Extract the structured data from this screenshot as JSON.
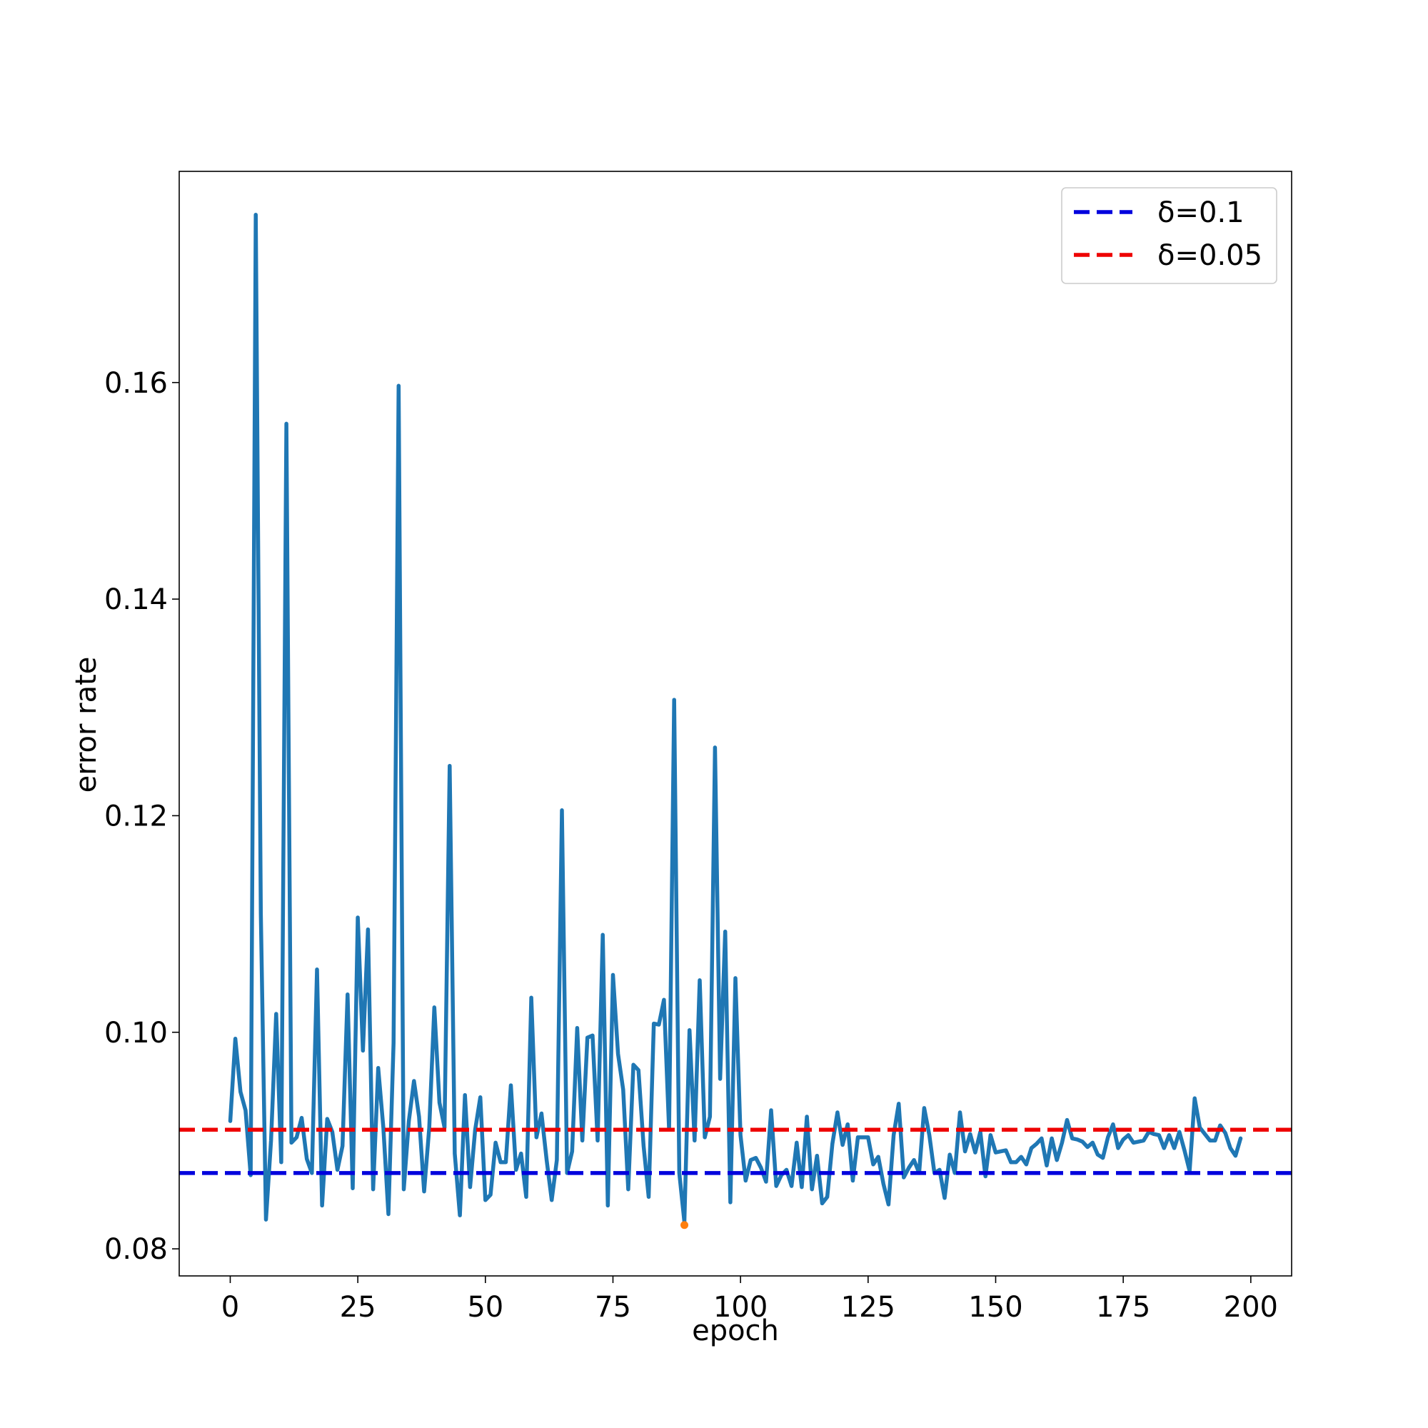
{
  "chart_data": {
    "type": "line",
    "title": "",
    "xlabel": "epoch",
    "ylabel": "error rate",
    "xlim": [
      -10,
      208
    ],
    "ylim": [
      0.0775,
      0.1795
    ],
    "xticks": [
      0,
      25,
      50,
      75,
      100,
      125,
      150,
      175,
      200
    ],
    "xtick_labels": [
      "0",
      "25",
      "50",
      "75",
      "100",
      "125",
      "150",
      "175",
      "200"
    ],
    "yticks": [
      0.08,
      0.1,
      0.12,
      0.14,
      0.16
    ],
    "ytick_labels": [
      "0.08",
      "0.10",
      "0.12",
      "0.14",
      "0.16"
    ],
    "grid": false,
    "legend_position": "top-right",
    "colors": {
      "series": "#1f77b4",
      "delta_01": "#0000dd",
      "delta_005": "#ee0000",
      "marker": "#ff7f0e"
    },
    "series": [
      {
        "color": "#1f77b4",
        "x": [
          0,
          1,
          2,
          3,
          4,
          5,
          6,
          7,
          8,
          9,
          10,
          11,
          12,
          13,
          14,
          15,
          16,
          17,
          18,
          19,
          20,
          21,
          22,
          23,
          24,
          25,
          26,
          27,
          28,
          29,
          30,
          31,
          32,
          33,
          34,
          35,
          36,
          37,
          38,
          39,
          40,
          41,
          42,
          43,
          44,
          45,
          46,
          47,
          48,
          49,
          50,
          51,
          52,
          53,
          54,
          55,
          56,
          57,
          58,
          59,
          60,
          61,
          62,
          63,
          64,
          65,
          66,
          67,
          68,
          69,
          70,
          71,
          72,
          73,
          74,
          75,
          76,
          77,
          78,
          79,
          80,
          81,
          82,
          83,
          84,
          85,
          86,
          87,
          88,
          89,
          90,
          91,
          92,
          93,
          94,
          95,
          96,
          97,
          98,
          99,
          100,
          101,
          102,
          103,
          104,
          105,
          106,
          107,
          108,
          109,
          110,
          111,
          112,
          113,
          114,
          115,
          116,
          117,
          118,
          119,
          120,
          121,
          122,
          123,
          124,
          125,
          126,
          127,
          128,
          129,
          130,
          131,
          132,
          133,
          134,
          135,
          136,
          137,
          138,
          139,
          140,
          141,
          142,
          143,
          144,
          145,
          146,
          147,
          148,
          149,
          150,
          151,
          152,
          153,
          154,
          155,
          156,
          157,
          158,
          159,
          160,
          161,
          162,
          163,
          164,
          165,
          166,
          167,
          168,
          169,
          170,
          171,
          172,
          173,
          174,
          175,
          176,
          177,
          178,
          179,
          180,
          181,
          182,
          183,
          184,
          185,
          186,
          187,
          188,
          189,
          190,
          191,
          192,
          193,
          194,
          195,
          196,
          197,
          198
        ],
        "y": [
          0.0918,
          0.0994,
          0.0945,
          0.0928,
          0.0868,
          0.1755,
          0.111,
          0.0827,
          0.09,
          0.1017,
          0.088,
          0.1562,
          0.0898,
          0.0903,
          0.0921,
          0.0883,
          0.087,
          0.1058,
          0.084,
          0.092,
          0.0908,
          0.0873,
          0.0895,
          0.1035,
          0.0856,
          0.1106,
          0.0983,
          0.1095,
          0.0855,
          0.0967,
          0.0912,
          0.0832,
          0.099,
          0.1597,
          0.0855,
          0.0918,
          0.0955,
          0.0922,
          0.0853,
          0.0912,
          0.1023,
          0.0935,
          0.0912,
          0.1246,
          0.0888,
          0.0831,
          0.0942,
          0.0857,
          0.091,
          0.094,
          0.0845,
          0.085,
          0.0898,
          0.088,
          0.088,
          0.0951,
          0.0873,
          0.0888,
          0.0848,
          0.1032,
          0.0903,
          0.0925,
          0.0882,
          0.0845,
          0.0882,
          0.1205,
          0.087,
          0.089,
          0.1004,
          0.09,
          0.0995,
          0.0997,
          0.09,
          0.109,
          0.084,
          0.1053,
          0.098,
          0.0947,
          0.0855,
          0.097,
          0.0965,
          0.0895,
          0.0848,
          0.1008,
          0.1007,
          0.103,
          0.091,
          0.1307,
          0.087,
          0.0825,
          0.1002,
          0.09,
          0.1048,
          0.0903,
          0.0922,
          0.1263,
          0.0957,
          0.1093,
          0.0843,
          0.105,
          0.0905,
          0.0863,
          0.0882,
          0.0884,
          0.0875,
          0.0862,
          0.0928,
          0.0858,
          0.0868,
          0.0873,
          0.0858,
          0.0898,
          0.0857,
          0.0922,
          0.0855,
          0.0886,
          0.0842,
          0.0848,
          0.0897,
          0.0926,
          0.0896,
          0.0915,
          0.0863,
          0.0903,
          0.0903,
          0.0903,
          0.0878,
          0.0885,
          0.086,
          0.0841,
          0.0905,
          0.0934,
          0.0866,
          0.0875,
          0.0882,
          0.087,
          0.093,
          0.0905,
          0.087,
          0.0873,
          0.0847,
          0.0887,
          0.087,
          0.0926,
          0.089,
          0.0906,
          0.0889,
          0.0908,
          0.0867,
          0.0905,
          0.0889,
          0.089,
          0.0891,
          0.088,
          0.088,
          0.0885,
          0.0878,
          0.0893,
          0.0897,
          0.0902,
          0.0877,
          0.0902,
          0.0882,
          0.0898,
          0.0919,
          0.0902,
          0.0901,
          0.0899,
          0.0894,
          0.0898,
          0.0887,
          0.0884,
          0.0903,
          0.0915,
          0.0893,
          0.0901,
          0.0905,
          0.0898,
          0.0899,
          0.09,
          0.0908,
          0.0906,
          0.0905,
          0.0893,
          0.0905,
          0.0893,
          0.0908,
          0.0891,
          0.0872,
          0.0939,
          0.0912,
          0.0906,
          0.09,
          0.09,
          0.0914,
          0.0907,
          0.0893,
          0.0886,
          0.0902
        ]
      }
    ],
    "hlines": [
      {
        "name": "δ=0.1",
        "y": 0.087,
        "color": "#0000dd",
        "style": "dashed"
      },
      {
        "name": "δ=0.05",
        "y": 0.091,
        "color": "#ee0000",
        "style": "dashed"
      }
    ],
    "points": [
      {
        "x": 89,
        "y": 0.0822,
        "color": "#ff7f0e"
      }
    ],
    "legend": [
      {
        "label": "δ=0.1",
        "color": "#0000dd"
      },
      {
        "label": "δ=0.05",
        "color": "#ee0000"
      }
    ]
  }
}
